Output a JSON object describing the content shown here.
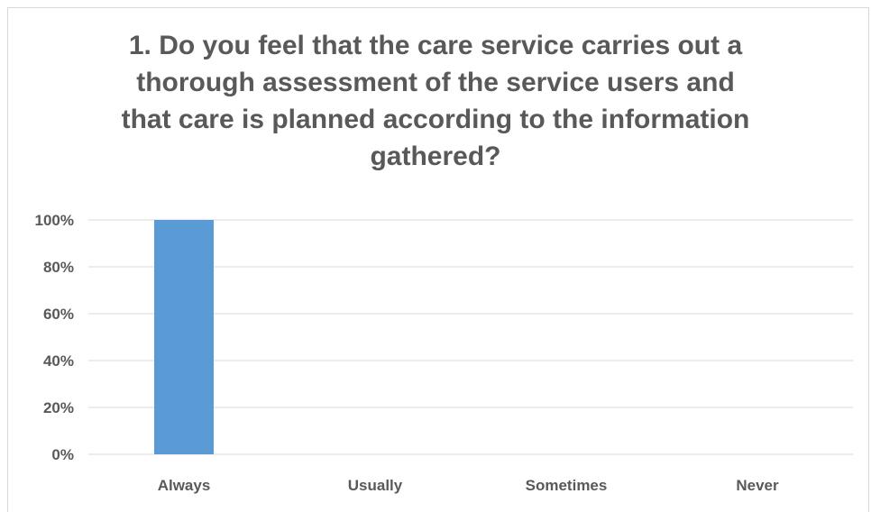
{
  "chart_data": {
    "type": "bar",
    "title_lines": [
      "1. Do you feel that the care service carries out a",
      "thorough assessment of the service users and",
      "that care is planned according to the information",
      "gathered?"
    ],
    "categories": [
      "Always",
      "Usually",
      "Sometimes",
      "Never"
    ],
    "values": [
      100,
      0,
      0,
      0
    ],
    "y_ticks": [
      "0%",
      "20%",
      "40%",
      "60%",
      "80%",
      "100%"
    ],
    "ylim": [
      0,
      100
    ],
    "bar_color": "#5b9bd5",
    "grid": true,
    "legend": "none"
  }
}
